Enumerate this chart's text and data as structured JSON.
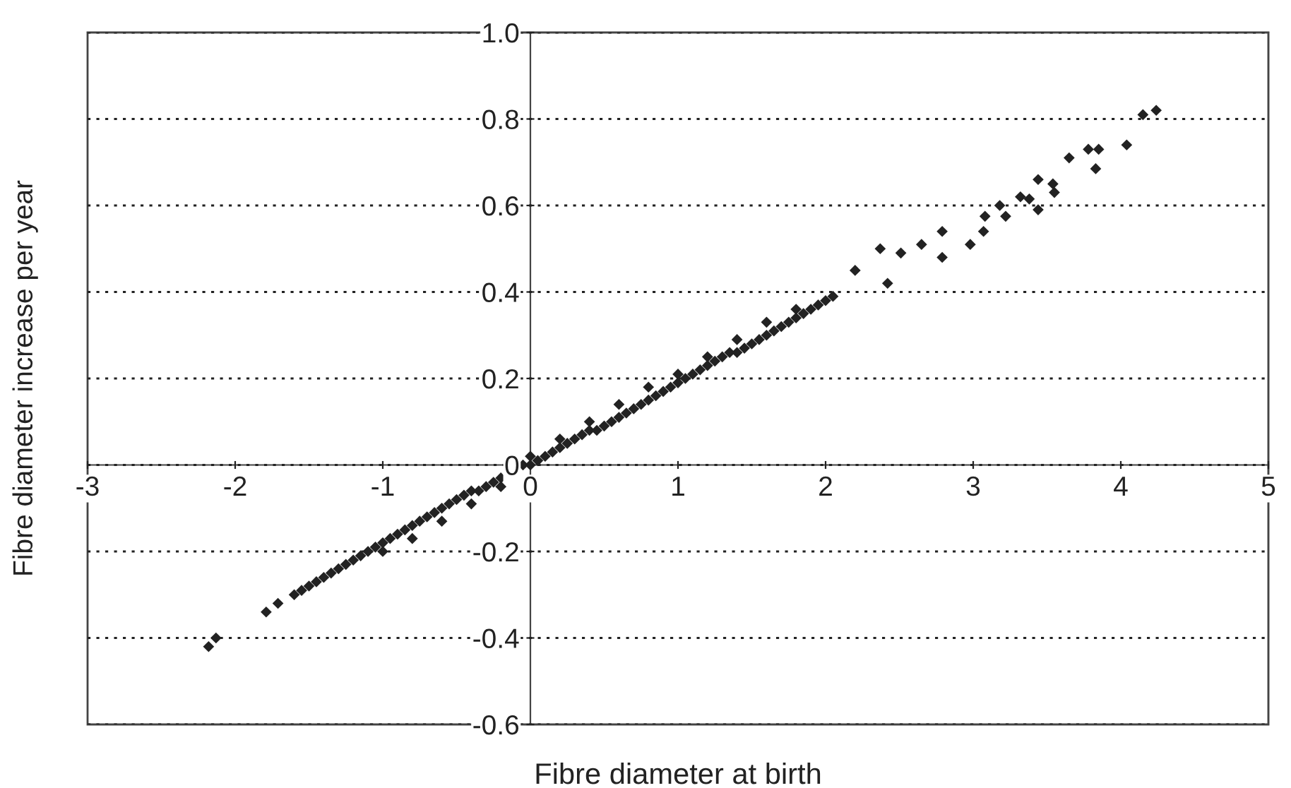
{
  "chart_data": {
    "type": "scatter",
    "xlabel": "Fibre diameter at birth",
    "ylabel": "Fibre diameter increase per year",
    "xlim": [
      -3,
      5
    ],
    "ylim": [
      -0.6,
      1.0
    ],
    "xticks": [
      -3,
      -2,
      -1,
      0,
      1,
      2,
      3,
      4,
      5
    ],
    "yticks": [
      -0.6,
      -0.4,
      -0.2,
      0,
      0.2,
      0.4,
      0.6,
      0.8,
      {
        "value": 1.0,
        "label": "1.0"
      }
    ],
    "grid": "y",
    "marker": "diamond",
    "series": [
      {
        "color": "#222222",
        "x": [
          -2.18,
          -2.13,
          -1.79,
          -1.71,
          -1.6,
          -1.55,
          -1.5,
          -1.45,
          -1.4,
          -1.35,
          -1.3,
          -1.25,
          -1.2,
          -1.15,
          -1.1,
          -1.05,
          -1.0,
          -0.95,
          -0.9,
          -0.85,
          -0.8,
          -0.75,
          -0.7,
          -0.65,
          -0.6,
          -0.55,
          -0.5,
          -0.45,
          -0.4,
          -0.35,
          -0.3,
          -0.25,
          -0.2,
          -0.05,
          0.0,
          0.05,
          0.1,
          0.15,
          0.2,
          0.25,
          0.3,
          0.35,
          0.4,
          0.45,
          0.5,
          0.55,
          0.6,
          0.65,
          0.7,
          0.75,
          0.8,
          0.85,
          0.9,
          0.95,
          1.0,
          1.05,
          1.1,
          1.15,
          1.2,
          1.25,
          1.3,
          1.35,
          1.4,
          1.45,
          1.5,
          1.55,
          1.6,
          1.65,
          1.7,
          1.75,
          1.8,
          1.85,
          1.9,
          1.95,
          2.0,
          -1.0,
          -0.8,
          -0.6,
          -0.4,
          -0.2,
          0.0,
          0.2,
          0.4,
          0.6,
          0.8,
          1.0,
          1.2,
          1.4,
          1.6,
          1.8,
          2.05,
          2.2,
          2.37,
          2.42,
          2.51,
          2.65,
          2.79,
          2.79,
          2.98,
          3.07,
          3.08,
          3.18,
          3.22,
          3.32,
          3.38,
          3.44,
          3.44,
          3.54,
          3.55,
          3.65,
          3.78,
          3.83,
          3.85,
          4.04,
          4.15,
          4.24
        ],
        "values": [
          -0.42,
          -0.4,
          -0.34,
          -0.32,
          -0.3,
          -0.29,
          -0.28,
          -0.27,
          -0.26,
          -0.25,
          -0.24,
          -0.23,
          -0.22,
          -0.21,
          -0.2,
          -0.19,
          -0.18,
          -0.17,
          -0.16,
          -0.15,
          -0.14,
          -0.13,
          -0.12,
          -0.11,
          -0.1,
          -0.09,
          -0.08,
          -0.07,
          -0.06,
          -0.06,
          -0.05,
          -0.04,
          -0.03,
          0.0,
          0.0,
          0.01,
          0.02,
          0.03,
          0.04,
          0.05,
          0.06,
          0.07,
          0.08,
          0.08,
          0.09,
          0.1,
          0.11,
          0.12,
          0.13,
          0.14,
          0.15,
          0.16,
          0.17,
          0.18,
          0.19,
          0.2,
          0.21,
          0.22,
          0.23,
          0.24,
          0.25,
          0.26,
          0.26,
          0.27,
          0.28,
          0.29,
          0.3,
          0.31,
          0.32,
          0.33,
          0.34,
          0.35,
          0.36,
          0.37,
          0.38,
          -0.2,
          -0.17,
          -0.13,
          -0.09,
          -0.05,
          0.02,
          0.06,
          0.1,
          0.14,
          0.18,
          0.21,
          0.25,
          0.29,
          0.33,
          0.36,
          0.39,
          0.45,
          0.5,
          0.42,
          0.49,
          0.51,
          0.54,
          0.48,
          0.51,
          0.54,
          0.575,
          0.6,
          0.575,
          0.62,
          0.615,
          0.66,
          0.59,
          0.65,
          0.63,
          0.71,
          0.73,
          0.685,
          0.73,
          0.74,
          0.81,
          0.82
        ]
      }
    ]
  }
}
